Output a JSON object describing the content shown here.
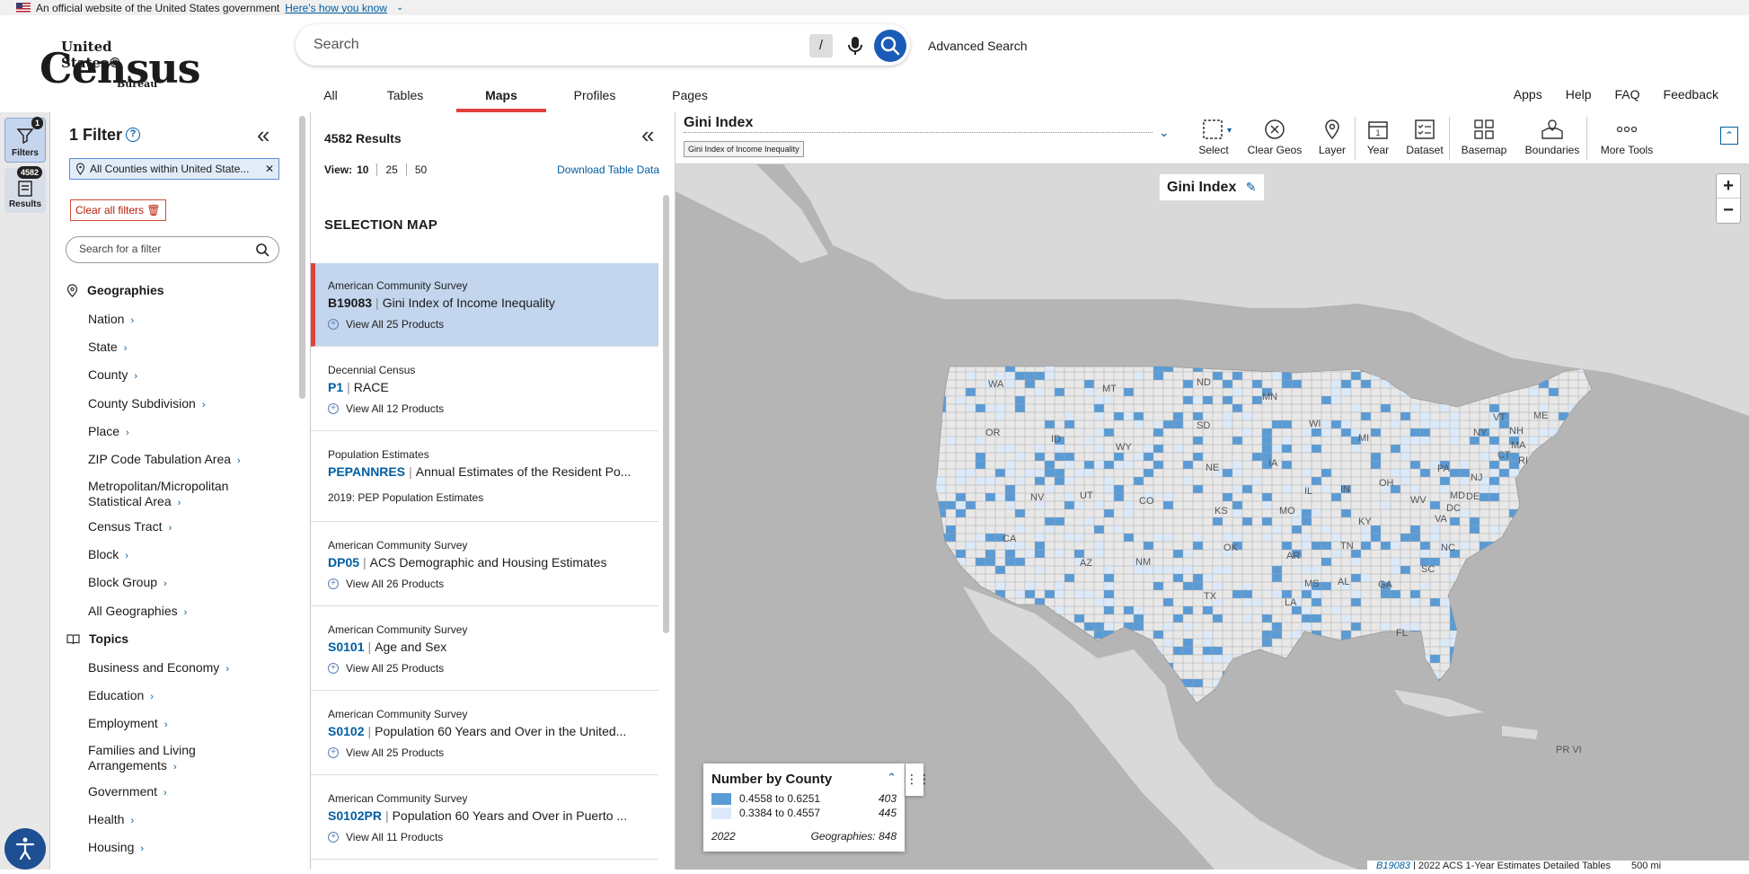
{
  "gov_banner": {
    "text": "An official website of the United States government",
    "link": "Here's how you know"
  },
  "logo": {
    "line1": "United States®",
    "line2": "Census",
    "line3": "Bureau"
  },
  "search": {
    "placeholder": "Search",
    "shortcut": "/",
    "advanced": "Advanced Search"
  },
  "nav": {
    "tabs": [
      {
        "label": "All"
      },
      {
        "label": "Tables"
      },
      {
        "label": "Maps"
      },
      {
        "label": "Profiles"
      },
      {
        "label": "Pages"
      }
    ],
    "links": [
      "Apps",
      "Help",
      "FAQ",
      "Feedback"
    ]
  },
  "rail": {
    "filters_label": "Filters",
    "filters_badge": "1",
    "results_label": "Results",
    "results_badge": "4582"
  },
  "filters": {
    "title": "1 Filter",
    "help": "?",
    "chip": "All Counties within United State...",
    "clear": "Clear all filters",
    "search_placeholder": "Search for a filter",
    "geographies_heading": "Geographies",
    "geographies": [
      "Nation",
      "State",
      "County",
      "County Subdivision",
      "Place",
      "ZIP Code Tabulation Area",
      "Metropolitan/Micropolitan Statistical Area",
      "Census Tract",
      "Block",
      "Block Group",
      "All Geographies"
    ],
    "topics_heading": "Topics",
    "topics": [
      "Business and Economy",
      "Education",
      "Employment",
      "Families and Living Arrangements",
      "Government",
      "Health",
      "Housing"
    ]
  },
  "results": {
    "count": "4582 Results",
    "view_label": "View:",
    "view_options": [
      "10",
      "25",
      "50"
    ],
    "download": "Download Table Data",
    "section": "SELECTION MAP",
    "cards": [
      {
        "source": "American Community Survey",
        "code": "B19083",
        "title": "Gini Index of Income Inequality",
        "products": "View All 25 Products"
      },
      {
        "source": "Decennial Census",
        "code": "P1",
        "title": "RACE",
        "products": "View All 12 Products"
      },
      {
        "source": "Population Estimates",
        "code": "PEPANNRES",
        "title": "Annual Estimates of the Resident Po...",
        "products": "2019: PEP Population Estimates"
      },
      {
        "source": "American Community Survey",
        "code": "DP05",
        "title": "ACS Demographic and Housing Estimates",
        "products": "View All 26 Products"
      },
      {
        "source": "American Community Survey",
        "code": "S0101",
        "title": "Age and Sex",
        "products": "View All 25 Products"
      },
      {
        "source": "American Community Survey",
        "code": "S0102",
        "title": "Population 60 Years and Over in the United...",
        "products": "View All 25 Products"
      },
      {
        "source": "American Community Survey",
        "code": "S0102PR",
        "title": "Population 60 Years and Over in Puerto ...",
        "products": "View All 11 Products"
      }
    ]
  },
  "map": {
    "title": "Gini Index",
    "subtitle": "Gini Index of Income Inequality",
    "label": "Gini Index",
    "tools": [
      "Select",
      "Clear Geos",
      "Layer",
      "Year",
      "Dataset",
      "Basemap",
      "Boundaries",
      "More Tools"
    ],
    "year_icon_value": "1",
    "state_labels": [
      "WA",
      "MT",
      "ND",
      "MN",
      "OR",
      "ID",
      "SD",
      "WY",
      "WI",
      "MI",
      "VT",
      "ME",
      "NH",
      "NY",
      "MA",
      "NE",
      "IA",
      "NV",
      "UT",
      "CO",
      "IL",
      "IN",
      "OH",
      "PA",
      "NJ",
      "CT",
      "RI",
      "DE",
      "MD",
      "WV",
      "VA",
      "CA",
      "KS",
      "MO",
      "KY",
      "DC",
      "NC",
      "TN",
      "AZ",
      "NM",
      "OK",
      "AR",
      "SC",
      "MS",
      "AL",
      "GA",
      "TX",
      "LA",
      "FL",
      "PR VI"
    ],
    "legend": {
      "title": "Number by County",
      "rows": [
        {
          "range": "0.4558 to 0.6251",
          "count": "403",
          "color": "#5b9bd5"
        },
        {
          "range": "0.3384 to 0.4557",
          "count": "445",
          "color": "#dce9f8"
        }
      ],
      "year": "2022",
      "geographies": "Geographies: 848"
    },
    "footer_code": "B19083",
    "footer_text": "2022 ACS 1-Year Estimates Detailed Tables",
    "scale": "500 mi"
  },
  "colors": {
    "accent": "#005ea2",
    "active_tab": "#e0413b",
    "county_high": "#5b9bd5",
    "county_low": "#dce9f8",
    "land": "#d9d9d9",
    "water": "#b5b5b5"
  }
}
